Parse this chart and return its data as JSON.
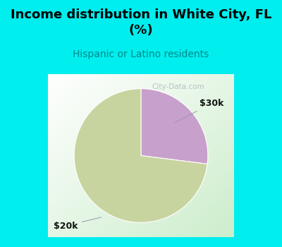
{
  "title": "Income distribution in White City, FL\n(%)",
  "subtitle": "Hispanic or Latino residents",
  "title_color": "#000000",
  "subtitle_color": "#008888",
  "title_bg_color": "#00eeee",
  "chart_panel_bg_top": "#ffffff",
  "chart_panel_bg_bottom": "#cceecc",
  "watermark": "City-Data.com",
  "slice_green_pct": 73,
  "slice_purple_pct": 27,
  "slice_green_color": "#c8d4a0",
  "slice_purple_color": "#c8a0cc",
  "label_30k": "$30k",
  "label_20k": "$20k",
  "start_angle": 90,
  "figsize": [
    4.0,
    3.5
  ],
  "dpi": 100
}
